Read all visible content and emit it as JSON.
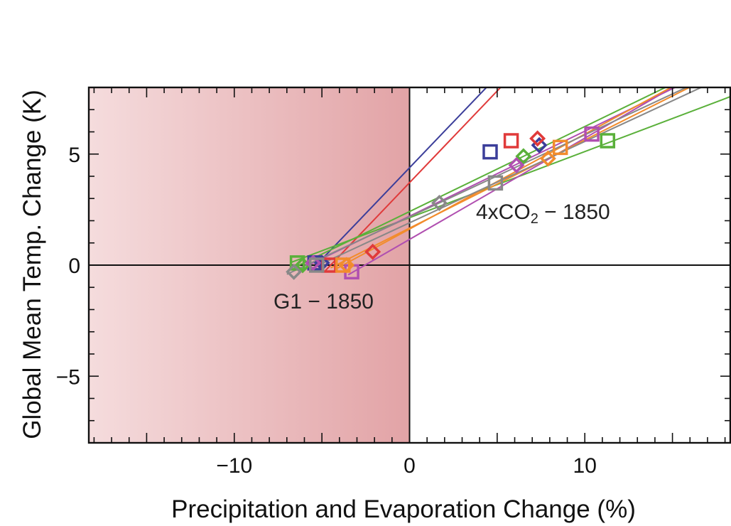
{
  "chart_data": {
    "type": "scatter",
    "xlabel": "Precipitation and Evaporation Change (%)",
    "ylabel": "Global Mean Temp. Change (K)",
    "xlim": [
      -18.3,
      18.3
    ],
    "ylim": [
      -8,
      8
    ],
    "xticks": [
      -10,
      0,
      10
    ],
    "xtick_labels": [
      "−10",
      "0",
      "10"
    ],
    "yticks": [
      -5,
      0,
      5
    ],
    "ytick_labels": [
      "−5",
      "0",
      "5"
    ],
    "shaded_region": {
      "x_from": -18.3,
      "x_to": 0,
      "color_light": "#f5dcdd",
      "color_dark": "#e2a3a6"
    },
    "grid": false,
    "annotations": {
      "g1": "G1 − 1850",
      "co2_main": "4xCO",
      "co2_sub": "2",
      "co2_tail": " − 1850"
    },
    "series": [
      {
        "color": "#3b3e9a",
        "fits": [
          [
            -5.2,
            0.1,
            5.6,
            9.0
          ]
        ],
        "precip": [
          {
            "x": -5.4,
            "y": 0.1
          },
          {
            "x": 4.6,
            "y": 5.1
          }
        ],
        "evap": [
          {
            "x": -5.0,
            "y": 0.1
          },
          {
            "x": 7.4,
            "y": 5.4
          }
        ]
      },
      {
        "color": "#e03a3a",
        "fits": [
          [
            -4.5,
            0.0,
            5.8,
            8.5
          ]
        ],
        "precip": [
          {
            "x": -4.6,
            "y": 0.0
          },
          {
            "x": 5.8,
            "y": 5.6
          }
        ],
        "evap": [
          {
            "x": -2.1,
            "y": 0.6
          },
          {
            "x": 7.3,
            "y": 5.7
          }
        ]
      },
      {
        "color": "#5ab03a",
        "fits": [
          [
            -6.5,
            0.2,
            11.3,
            5.5
          ],
          [
            -6.3,
            0.0,
            6.5,
            4.9
          ]
        ],
        "precip": [
          {
            "x": -6.4,
            "y": 0.1
          },
          {
            "x": 11.3,
            "y": 5.6
          }
        ],
        "evap": [
          {
            "x": -6.1,
            "y": 0.0
          },
          {
            "x": 6.5,
            "y": 4.9
          }
        ]
      },
      {
        "color": "#b04fb0",
        "fits": [
          [
            -3.2,
            -0.3,
            10.4,
            5.9
          ],
          [
            -5.5,
            0.1,
            6.0,
            4.5
          ]
        ],
        "precip": [
          {
            "x": -3.3,
            "y": -0.3
          },
          {
            "x": 10.4,
            "y": 5.9
          }
        ],
        "evap": [
          {
            "x": -5.5,
            "y": 0.1
          },
          {
            "x": 6.1,
            "y": 4.5
          }
        ]
      },
      {
        "color": "#f28c2c",
        "fits": [
          [
            -3.8,
            0.0,
            8.6,
            5.3
          ],
          [
            -4.2,
            0.0,
            7.9,
            4.8
          ]
        ],
        "precip": [
          {
            "x": -3.8,
            "y": 0.0
          },
          {
            "x": 8.6,
            "y": 5.3
          }
        ],
        "evap": [
          {
            "x": -3.6,
            "y": 0.0
          },
          {
            "x": 7.9,
            "y": 4.8
          }
        ]
      },
      {
        "color": "#888888",
        "fits": [
          [
            -5.2,
            0.0,
            4.9,
            3.7
          ],
          [
            -6.7,
            -0.3,
            1.7,
            2.8
          ]
        ],
        "precip": [
          {
            "x": -5.3,
            "y": 0.0
          },
          {
            "x": 4.9,
            "y": 3.7
          }
        ],
        "evap": [
          {
            "x": -6.6,
            "y": -0.3
          },
          {
            "x": 1.7,
            "y": 2.8
          }
        ]
      }
    ]
  }
}
